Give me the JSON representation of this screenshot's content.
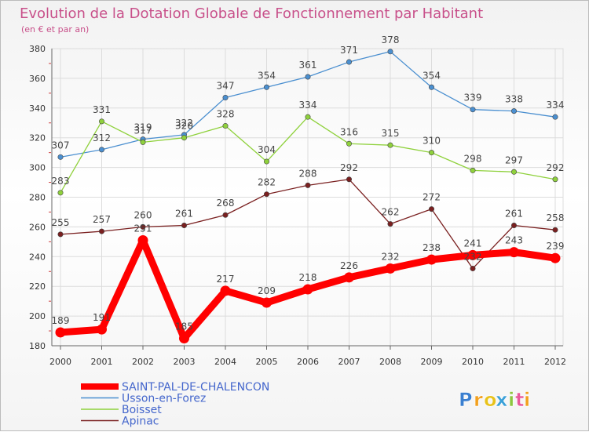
{
  "chart_data": {
    "type": "line",
    "title": "Evolution de la Dotation Globale de Fonctionnement par Habitant",
    "subtitle": "(en € et par an)",
    "xlabel": "",
    "ylabel": "",
    "x": [
      "2000",
      "2001",
      "2002",
      "2003",
      "2004",
      "2005",
      "2006",
      "2007",
      "2008",
      "2009",
      "2010",
      "2011",
      "2012"
    ],
    "ylim": [
      180,
      380
    ],
    "yticks": [
      "180",
      "200",
      "220",
      "240",
      "260",
      "280",
      "300",
      "320",
      "340",
      "360",
      "380"
    ],
    "grid": true,
    "legend_position": "bottom-left",
    "series": [
      {
        "name": "SAINT-PAL-DE-CHALENCON",
        "color": "#ff0000",
        "values": [
          189,
          191,
          251,
          185,
          217,
          209,
          218,
          226,
          232,
          238,
          241,
          243,
          239
        ],
        "labels": [
          "189",
          "191",
          "251",
          "185",
          "217",
          "209",
          "218",
          "226",
          "232",
          "238",
          "241",
          "243",
          "239"
        ]
      },
      {
        "name": "Usson-en-Forez",
        "color": "#4a8fd0",
        "values": [
          307,
          312,
          319,
          322,
          347,
          354,
          361,
          371,
          378,
          354,
          339,
          338,
          334
        ],
        "labels": [
          "307",
          "312",
          "319",
          "322",
          "347",
          "354",
          "361",
          "371",
          "378",
          "354",
          "339",
          "338",
          "334"
        ]
      },
      {
        "name": "Boisset",
        "color": "#8fd13c",
        "values": [
          283,
          331,
          317,
          320,
          328,
          304,
          334,
          316,
          315,
          310,
          298,
          297,
          292
        ],
        "labels": [
          "283",
          "331",
          "317",
          "320",
          "328",
          "304",
          "334",
          "316",
          "315",
          "310",
          "298",
          "297",
          "292"
        ]
      },
      {
        "name": "Apinac",
        "color": "#7a2020",
        "values": [
          255,
          257,
          260,
          261,
          268,
          282,
          288,
          292,
          262,
          272,
          232,
          261,
          258
        ],
        "labels": [
          "255",
          "257",
          "260",
          "261",
          "268",
          "282",
          "288",
          "292",
          "262",
          "272",
          "232",
          "261",
          "258"
        ]
      }
    ]
  },
  "brand": {
    "letters": [
      "P",
      "r",
      "o",
      "x",
      "i",
      "t",
      "i"
    ],
    "colors": [
      "#3a7fd0",
      "#f2a01e",
      "#e8c21a",
      "#3aa0d8",
      "#8cc63f",
      "#e85a9b",
      "#f2a01e"
    ]
  }
}
